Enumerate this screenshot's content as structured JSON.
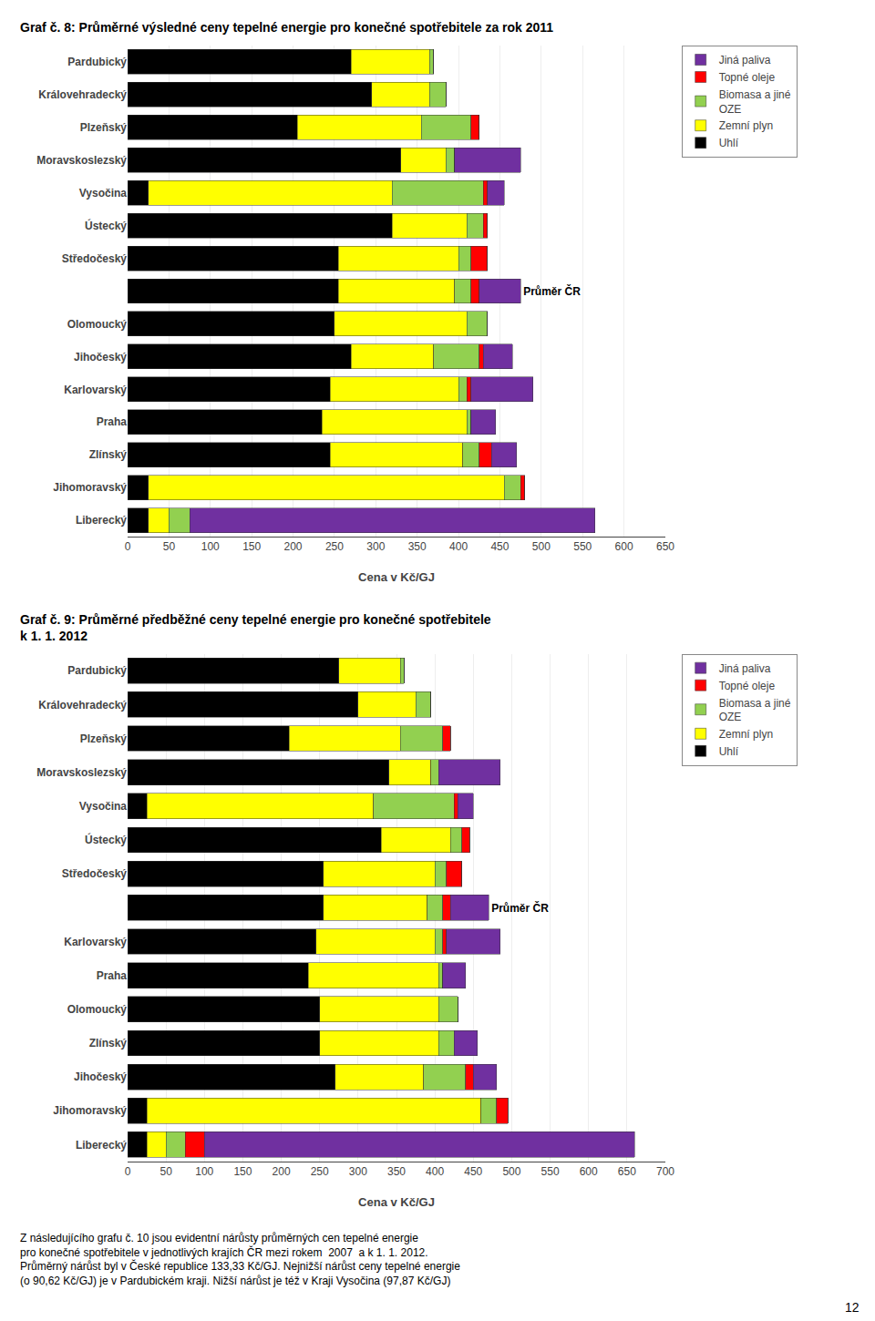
{
  "chart_data": [
    {
      "type": "bar",
      "orientation": "horizontal",
      "stacked": true,
      "title": "Graf č. 8: Průměrné výsledné ceny tepelné energie pro konečné spotřebitele za rok 2011",
      "xlabel": "Cena v Kč/GJ",
      "categories": [
        "Pardubický",
        "Královehradecký",
        "Plzeňský",
        "Moravskoslezský",
        "Vysočina",
        "Ústecký",
        "Středočeský",
        null,
        "Olomoucký",
        "Jihočeský",
        "Karlovarský",
        "Praha",
        "Zlínský",
        "Jihomoravský",
        "Liberecký"
      ],
      "series": [
        {
          "name": "Uhlí",
          "color": "#000000",
          "values": [
            270,
            295,
            205,
            330,
            25,
            320,
            255,
            255,
            250,
            270,
            245,
            235,
            245,
            25,
            25
          ]
        },
        {
          "name": "Zemní plyn",
          "color": "#ffff00",
          "values": [
            95,
            70,
            150,
            55,
            295,
            90,
            145,
            140,
            160,
            100,
            155,
            175,
            160,
            430,
            25
          ]
        },
        {
          "name": "Biomasa a jiné\nOZE",
          "color": "#92d050",
          "values": [
            5,
            20,
            60,
            10,
            110,
            20,
            15,
            20,
            25,
            55,
            10,
            5,
            20,
            20,
            25
          ]
        },
        {
          "name": "Topné oleje",
          "color": "#ff0000",
          "values": [
            0,
            0,
            10,
            0,
            5,
            5,
            20,
            10,
            0,
            5,
            5,
            0,
            15,
            5,
            0
          ]
        },
        {
          "name": "Jiná paliva",
          "color": "#7030a0",
          "values": [
            0,
            0,
            0,
            80,
            20,
            0,
            0,
            50,
            0,
            35,
            75,
            30,
            30,
            0,
            490
          ]
        }
      ],
      "xlim": [
        0,
        650
      ],
      "xticks": [
        0,
        50,
        100,
        150,
        200,
        250,
        300,
        350,
        400,
        450,
        500,
        550,
        600,
        650
      ],
      "grid": true,
      "legend": "right",
      "annotations": [
        {
          "text": "Průměr ČR",
          "y": 7
        }
      ]
    },
    {
      "type": "bar",
      "orientation": "horizontal",
      "stacked": true,
      "title": "Graf č. 9: Průměrné předběžné ceny tepelné energie pro konečné spotřebitele\nk 1. 1. 2012",
      "xlabel": "Cena v Kč/GJ",
      "categories": [
        "Pardubický",
        "Královehradecký",
        "Plzeňský",
        "Moravskoslezský",
        "Vysočina",
        "Ústecký",
        "Středočeský",
        null,
        "Karlovarský",
        "Praha",
        "Olomoucký",
        "Zlínský",
        "Jihočeský",
        "Jihomoravský",
        "Liberecký"
      ],
      "series": [
        {
          "name": "Uhlí",
          "color": "#000000",
          "values": [
            275,
            300,
            210,
            340,
            25,
            330,
            255,
            255,
            245,
            235,
            250,
            250,
            270,
            25,
            25
          ]
        },
        {
          "name": "Zemní plyn",
          "color": "#ffff00",
          "values": [
            80,
            75,
            145,
            55,
            295,
            90,
            145,
            135,
            155,
            170,
            155,
            155,
            115,
            435,
            25
          ]
        },
        {
          "name": "Biomasa a jiné\nOZE",
          "color": "#92d050",
          "values": [
            5,
            20,
            55,
            10,
            105,
            15,
            15,
            20,
            10,
            5,
            25,
            20,
            55,
            20,
            25
          ]
        },
        {
          "name": "Topné oleje",
          "color": "#ff0000",
          "values": [
            0,
            0,
            10,
            0,
            5,
            10,
            20,
            10,
            5,
            0,
            0,
            0,
            10,
            15,
            25
          ]
        },
        {
          "name": "Jiná paliva",
          "color": "#7030a0",
          "values": [
            0,
            0,
            0,
            80,
            20,
            0,
            0,
            50,
            70,
            30,
            0,
            30,
            30,
            0,
            560
          ]
        }
      ],
      "xlim": [
        0,
        700
      ],
      "xticks": [
        0,
        50,
        100,
        150,
        200,
        250,
        300,
        350,
        400,
        450,
        500,
        550,
        600,
        650,
        700
      ],
      "grid": true,
      "legend": "right",
      "annotations": [
        {
          "text": "Průměr ČR",
          "y": 7
        },
        {
          "text": "Z následujícího grafu č. 10 jsou evidentní nárůsty průměrných cen tepelné energie\npro konečné spotřebitele v jednotlivých krajích ČR mezi rokem  2007  a k 1. 1. 2012.\nPrůměrný nárůst byl v České republice 133,33 Kč/GJ. Nejnižší nárůst ceny tepelné energie\n(o 90,62 Kč/GJ) je v Pardubickém kraji. Nižší nárůst je též v Kraji Vysočina (97,87 Kč/GJ)"
        },
        {
          "text": "12"
        }
      ]
    }
  ]
}
